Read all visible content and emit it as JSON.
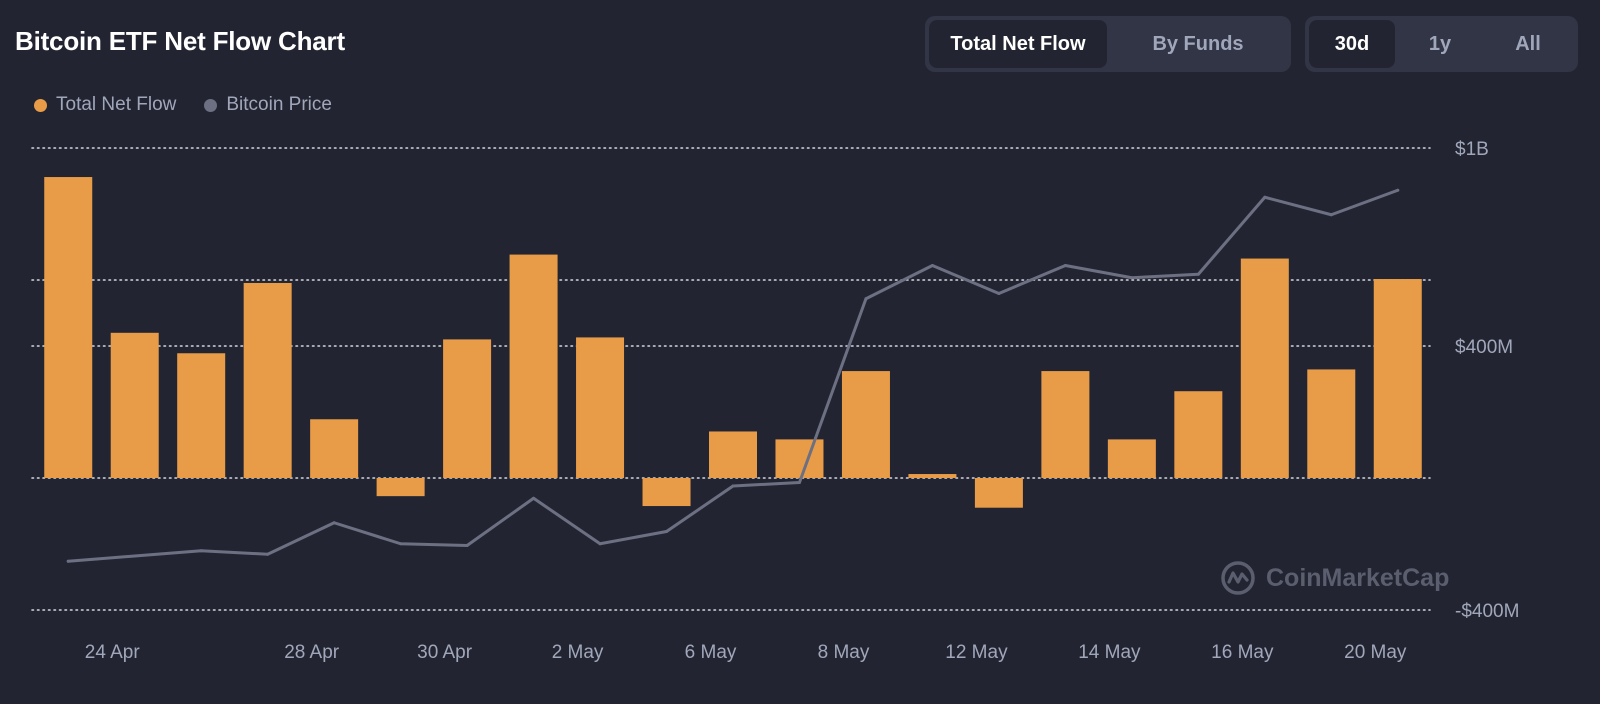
{
  "header": {
    "title": "Bitcoin ETF Net Flow Chart"
  },
  "view_toggle": {
    "options": [
      "Total Net Flow",
      "By Funds"
    ],
    "selected": "Total Net Flow"
  },
  "range_toggle": {
    "options": [
      "30d",
      "1y",
      "All"
    ],
    "selected": "30d"
  },
  "legend": {
    "items": [
      {
        "label": "Total Net Flow",
        "color": "#E89C48"
      },
      {
        "label": "Bitcoin Price",
        "color": "#6C7082"
      }
    ]
  },
  "watermark": {
    "text": "CoinMarketCap"
  },
  "chart_data": {
    "type": "bar",
    "y_axis": {
      "position": "right",
      "range": [
        -400000000,
        1000000000
      ],
      "gridlines": [
        -400000000,
        0,
        400000000,
        600000000,
        1000000000
      ],
      "tick_labels": [
        {
          "value": 1000000000,
          "label": "$1B"
        },
        {
          "value": 400000000,
          "label": "$400M"
        },
        {
          "value": -400000000,
          "label": "-$400M"
        }
      ]
    },
    "x_tick_labels": [
      {
        "index": 0,
        "label": "24 Apr"
      },
      {
        "index": 3,
        "label": "28 Apr"
      },
      {
        "index": 5,
        "label": "30 Apr"
      },
      {
        "index": 7,
        "label": "2 May"
      },
      {
        "index": 9,
        "label": "6 May"
      },
      {
        "index": 11,
        "label": "8 May"
      },
      {
        "index": 13,
        "label": "12 May"
      },
      {
        "index": 15,
        "label": "14 May"
      },
      {
        "index": 17,
        "label": "16 May"
      },
      {
        "index": 19,
        "label": "20 May"
      }
    ],
    "series": [
      {
        "name": "Total Net Flow",
        "kind": "bar",
        "color": "#E89C48",
        "values": [
          912000000,
          440000000,
          378000000,
          591000000,
          178000000,
          -55000000,
          420000000,
          677000000,
          426000000,
          -85000000,
          141000000,
          117000000,
          324000000,
          12000000,
          -90000000,
          324000000,
          117000000,
          263000000,
          665000000,
          329000000,
          603000000
        ]
      },
      {
        "name": "Bitcoin Price",
        "kind": "line",
        "color": "#6C7082",
        "unit": "relative",
        "values": [
          0.05,
          0.08,
          0.11,
          0.09,
          0.27,
          0.15,
          0.14,
          0.41,
          0.15,
          0.22,
          0.48,
          0.5,
          1.55,
          1.74,
          1.58,
          1.74,
          1.67,
          1.69,
          2.13,
          2.03,
          2.17
        ]
      }
    ],
    "grid": true,
    "grid_style": "dotted",
    "legend_position": "top-left"
  }
}
